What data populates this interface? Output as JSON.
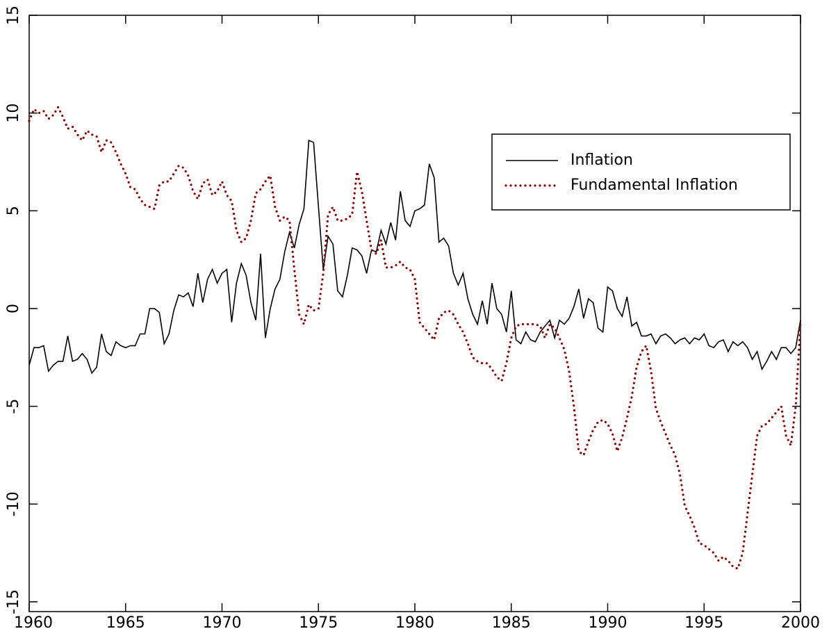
{
  "chart_data": {
    "type": "line",
    "x": [
      1960,
      1960.25,
      1960.5,
      1960.75,
      1961,
      1961.25,
      1961.5,
      1961.75,
      1962,
      1962.25,
      1962.5,
      1962.75,
      1963,
      1963.25,
      1963.5,
      1963.75,
      1964,
      1964.25,
      1964.5,
      1964.75,
      1965,
      1965.25,
      1965.5,
      1965.75,
      1966,
      1966.25,
      1966.5,
      1966.75,
      1967,
      1967.25,
      1967.5,
      1967.75,
      1968,
      1968.25,
      1968.5,
      1968.75,
      1969,
      1969.25,
      1969.5,
      1969.75,
      1970,
      1970.25,
      1970.5,
      1970.75,
      1971,
      1971.25,
      1971.5,
      1971.75,
      1972,
      1972.25,
      1972.5,
      1972.75,
      1973,
      1973.25,
      1973.5,
      1973.75,
      1974,
      1974.25,
      1974.5,
      1974.75,
      1975,
      1975.25,
      1975.5,
      1975.75,
      1976,
      1976.25,
      1976.5,
      1976.75,
      1977,
      1977.25,
      1977.5,
      1977.75,
      1978,
      1978.25,
      1978.5,
      1978.75,
      1979,
      1979.25,
      1979.5,
      1979.75,
      1980,
      1980.25,
      1980.5,
      1980.75,
      1981,
      1981.25,
      1981.5,
      1981.75,
      1982,
      1982.25,
      1982.5,
      1982.75,
      1983,
      1983.25,
      1983.5,
      1983.75,
      1984,
      1984.25,
      1984.5,
      1984.75,
      1985,
      1985.25,
      1985.5,
      1985.75,
      1986,
      1986.25,
      1986.5,
      1986.75,
      1987,
      1987.25,
      1987.5,
      1987.75,
      1988,
      1988.25,
      1988.5,
      1988.75,
      1989,
      1989.25,
      1989.5,
      1989.75,
      1990,
      1990.25,
      1990.5,
      1990.75,
      1991,
      1991.25,
      1991.5,
      1991.75,
      1992,
      1992.25,
      1992.5,
      1992.75,
      1993,
      1993.25,
      1993.5,
      1993.75,
      1994,
      1994.25,
      1994.5,
      1994.75,
      1995,
      1995.25,
      1995.5,
      1995.75,
      1996,
      1996.25,
      1996.5,
      1996.75,
      1997,
      1997.25,
      1997.5,
      1997.75,
      1998,
      1998.25,
      1998.5,
      1998.75,
      1999,
      1999.25,
      1999.5,
      1999.75,
      2000
    ],
    "series": [
      {
        "name": "Inflation",
        "color": "#000000",
        "style": "solid",
        "values": [
          -2.9,
          -2.0,
          -2.0,
          -1.9,
          -3.2,
          -2.9,
          -2.7,
          -2.7,
          -1.4,
          -2.7,
          -2.6,
          -2.3,
          -2.6,
          -3.3,
          -3.0,
          -1.3,
          -2.2,
          -2.4,
          -1.7,
          -1.9,
          -2.0,
          -1.9,
          -1.9,
          -1.3,
          -1.3,
          0.0,
          0.0,
          -0.2,
          -1.8,
          -1.3,
          -0.1,
          0.7,
          0.6,
          0.8,
          0.1,
          1.8,
          0.3,
          1.5,
          2.0,
          1.3,
          1.8,
          2.0,
          -0.7,
          1.3,
          2.3,
          1.7,
          0.3,
          -0.6,
          2.8,
          -1.5,
          0.0,
          1.0,
          1.5,
          2.9,
          3.9,
          3.1,
          4.3,
          5.1,
          8.6,
          8.5,
          5.2,
          2.0,
          3.7,
          3.3,
          0.9,
          0.6,
          1.7,
          3.1,
          3.0,
          2.7,
          1.8,
          3.0,
          2.9,
          4.0,
          3.3,
          4.4,
          3.5,
          6.0,
          4.5,
          4.2,
          5.0,
          5.1,
          5.3,
          7.4,
          6.7,
          3.4,
          3.6,
          3.2,
          1.8,
          1.2,
          1.8,
          0.5,
          -0.3,
          -0.8,
          0.4,
          -0.8,
          1.3,
          0.0,
          -0.3,
          -1.2,
          0.9,
          -1.6,
          -1.8,
          -1.2,
          -1.6,
          -1.7,
          -1.2,
          -0.9,
          -0.6,
          -1.5,
          -0.6,
          -0.8,
          -0.5,
          0.1,
          1.0,
          -0.5,
          0.5,
          0.3,
          -1.0,
          -1.2,
          1.1,
          0.9,
          0.0,
          -0.4,
          0.6,
          -0.9,
          -0.7,
          -1.4,
          -1.4,
          -1.3,
          -1.8,
          -1.4,
          -1.3,
          -1.5,
          -1.8,
          -1.6,
          -1.5,
          -1.8,
          -1.5,
          -1.6,
          -1.3,
          -1.9,
          -2.0,
          -1.7,
          -1.6,
          -2.2,
          -1.7,
          -1.9,
          -1.7,
          -2.0,
          -2.6,
          -2.2,
          -3.1,
          -2.7,
          -2.2,
          -2.6,
          -2.0,
          -2.0,
          -2.3,
          -2.0,
          -0.6
        ]
      },
      {
        "name": "Fundamental Inflation",
        "color": "#8b0000",
        "style": "dotted",
        "values": [
          9.6,
          10.2,
          10.0,
          10.1,
          9.7,
          9.9,
          10.3,
          9.8,
          9.2,
          9.3,
          8.9,
          8.6,
          9.1,
          8.9,
          8.8,
          8.0,
          8.6,
          8.5,
          8.0,
          7.4,
          6.9,
          6.2,
          6.1,
          5.6,
          5.3,
          5.2,
          5.1,
          6.3,
          6.5,
          6.5,
          6.9,
          7.3,
          7.2,
          6.8,
          6.0,
          5.6,
          6.4,
          6.6,
          5.8,
          6.0,
          6.5,
          5.8,
          5.5,
          4.0,
          3.4,
          3.6,
          4.5,
          5.9,
          6.1,
          6.5,
          6.8,
          5.2,
          4.5,
          4.7,
          4.5,
          2.0,
          -0.3,
          -0.8,
          0.2,
          -0.1,
          0.0,
          1.8,
          4.8,
          5.2,
          4.5,
          4.5,
          4.6,
          4.8,
          7.0,
          6.0,
          4.5,
          3.0,
          2.8,
          3.5,
          2.1,
          2.1,
          2.2,
          2.4,
          2.1,
          2.0,
          1.5,
          -0.7,
          -1.0,
          -1.3,
          -1.6,
          -0.5,
          -0.2,
          -0.1,
          -0.3,
          -0.8,
          -1.2,
          -1.8,
          -2.5,
          -2.7,
          -2.8,
          -2.8,
          -3.1,
          -3.5,
          -3.7,
          -2.8,
          -1.5,
          -0.9,
          -0.8,
          -0.8,
          -0.8,
          -0.8,
          -0.9,
          -1.5,
          -0.8,
          -1.0,
          -1.5,
          -2.1,
          -3.2,
          -5.0,
          -7.3,
          -7.5,
          -6.8,
          -6.2,
          -5.8,
          -5.7,
          -5.9,
          -6.4,
          -7.3,
          -6.6,
          -5.6,
          -4.5,
          -3.0,
          -2.2,
          -1.9,
          -3.2,
          -5.1,
          -5.8,
          -6.4,
          -7.0,
          -7.5,
          -8.5,
          -10.1,
          -10.6,
          -11.2,
          -12.0,
          -12.1,
          -12.3,
          -12.5,
          -12.9,
          -12.7,
          -12.9,
          -13.2,
          -13.3,
          -12.5,
          -10.5,
          -8.5,
          -6.5,
          -6.0,
          -5.9,
          -5.6,
          -5.3,
          -5.0,
          -6.5,
          -7.0,
          -5.0,
          -0.7
        ]
      }
    ],
    "xlim": [
      1960,
      2000
    ],
    "xticks": [
      1960,
      1965,
      1970,
      1975,
      1980,
      1985,
      1990,
      1995,
      2000
    ],
    "ylim": [
      -15.5,
      15
    ],
    "yticks": [
      -15,
      -10,
      -5,
      0,
      5,
      10,
      15
    ],
    "grid": false,
    "legend": "upper right"
  }
}
